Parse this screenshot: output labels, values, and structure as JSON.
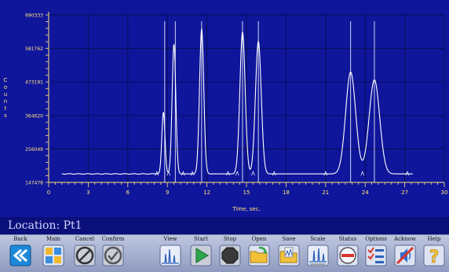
{
  "chart_data": {
    "type": "line",
    "xlabel": "Time, sec.",
    "ylabel": "Counts",
    "xlim": [
      0,
      30
    ],
    "ylim": [
      147478,
      690333
    ],
    "x_ticks": [
      0,
      3,
      6,
      9,
      12,
      15,
      18,
      21,
      24,
      27,
      30
    ],
    "y_ticks": [
      147478,
      256049,
      364620,
      473191,
      581762,
      690333
    ],
    "baseline": 175000,
    "peaks": [
      {
        "center": 8.7,
        "height": 375000,
        "width": 0.12
      },
      {
        "center": 9.5,
        "height": 595000,
        "width": 0.14
      },
      {
        "center": 11.6,
        "height": 645000,
        "width": 0.16
      },
      {
        "center": 14.7,
        "height": 635000,
        "width": 0.2
      },
      {
        "center": 15.9,
        "height": 605000,
        "width": 0.22
      },
      {
        "center": 22.9,
        "height": 505000,
        "width": 0.38
      },
      {
        "center": 24.7,
        "height": 480000,
        "width": 0.4
      }
    ],
    "vertical_markers": [
      8.8,
      9.6,
      11.6,
      14.7,
      15.9,
      22.9,
      24.7
    ],
    "grid": true,
    "line_color": "#ffffff",
    "axis_color": "#ffe37a",
    "background": "#0f169c"
  },
  "location": {
    "text": "Location: Pt1"
  },
  "toolbar": {
    "buttons": [
      {
        "label": "Back",
        "icon": "back-arrow-icon"
      },
      {
        "label": "Main",
        "icon": "main-menu-icon"
      },
      {
        "label": "Cancel",
        "icon": "cancel-icon"
      },
      {
        "label": "Confirm",
        "icon": "confirm-icon"
      },
      {
        "label": "View",
        "icon": "view-chromatogram-icon"
      },
      {
        "label": "Start",
        "icon": "play-icon"
      },
      {
        "label": "Stop",
        "icon": "stop-icon"
      },
      {
        "label": "Open",
        "icon": "open-folder-icon"
      },
      {
        "label": "Save",
        "icon": "save-folder-icon"
      },
      {
        "label": "Scale",
        "icon": "scale-icon"
      },
      {
        "label": "Status",
        "icon": "status-icon"
      },
      {
        "label": "Options",
        "icon": "options-icon"
      },
      {
        "label": "Acknow",
        "icon": "acknowledge-alarm-icon"
      },
      {
        "label": "Help",
        "icon": "help-icon"
      }
    ]
  }
}
